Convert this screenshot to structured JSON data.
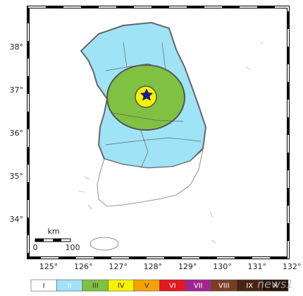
{
  "map": {
    "latitude_labels": [
      "38°",
      "37°",
      "36°",
      "35°",
      "34°"
    ],
    "longitude_labels": [
      "125°",
      "126°",
      "127°",
      "128°",
      "129°",
      "130°",
      "131°",
      "132°"
    ],
    "scale": {
      "unit": "km",
      "start": "0",
      "end": "100"
    },
    "legend": [
      {
        "label": "I",
        "color": "#ffffff"
      },
      {
        "label": "II",
        "color": "#9fe3f7"
      },
      {
        "label": "III",
        "color": "#7fc241"
      },
      {
        "label": "IV",
        "color": "#f7f200"
      },
      {
        "label": "V",
        "color": "#f5a300"
      },
      {
        "label": "VI",
        "color": "#e5161f"
      },
      {
        "label": "VII",
        "color": "#a0268f"
      },
      {
        "label": "VIII",
        "color": "#7b3d22"
      },
      {
        "label": "IX",
        "color": "#4a2412"
      },
      {
        "label": "X",
        "color": "#2a1408"
      }
    ],
    "watermark": "news1"
  }
}
